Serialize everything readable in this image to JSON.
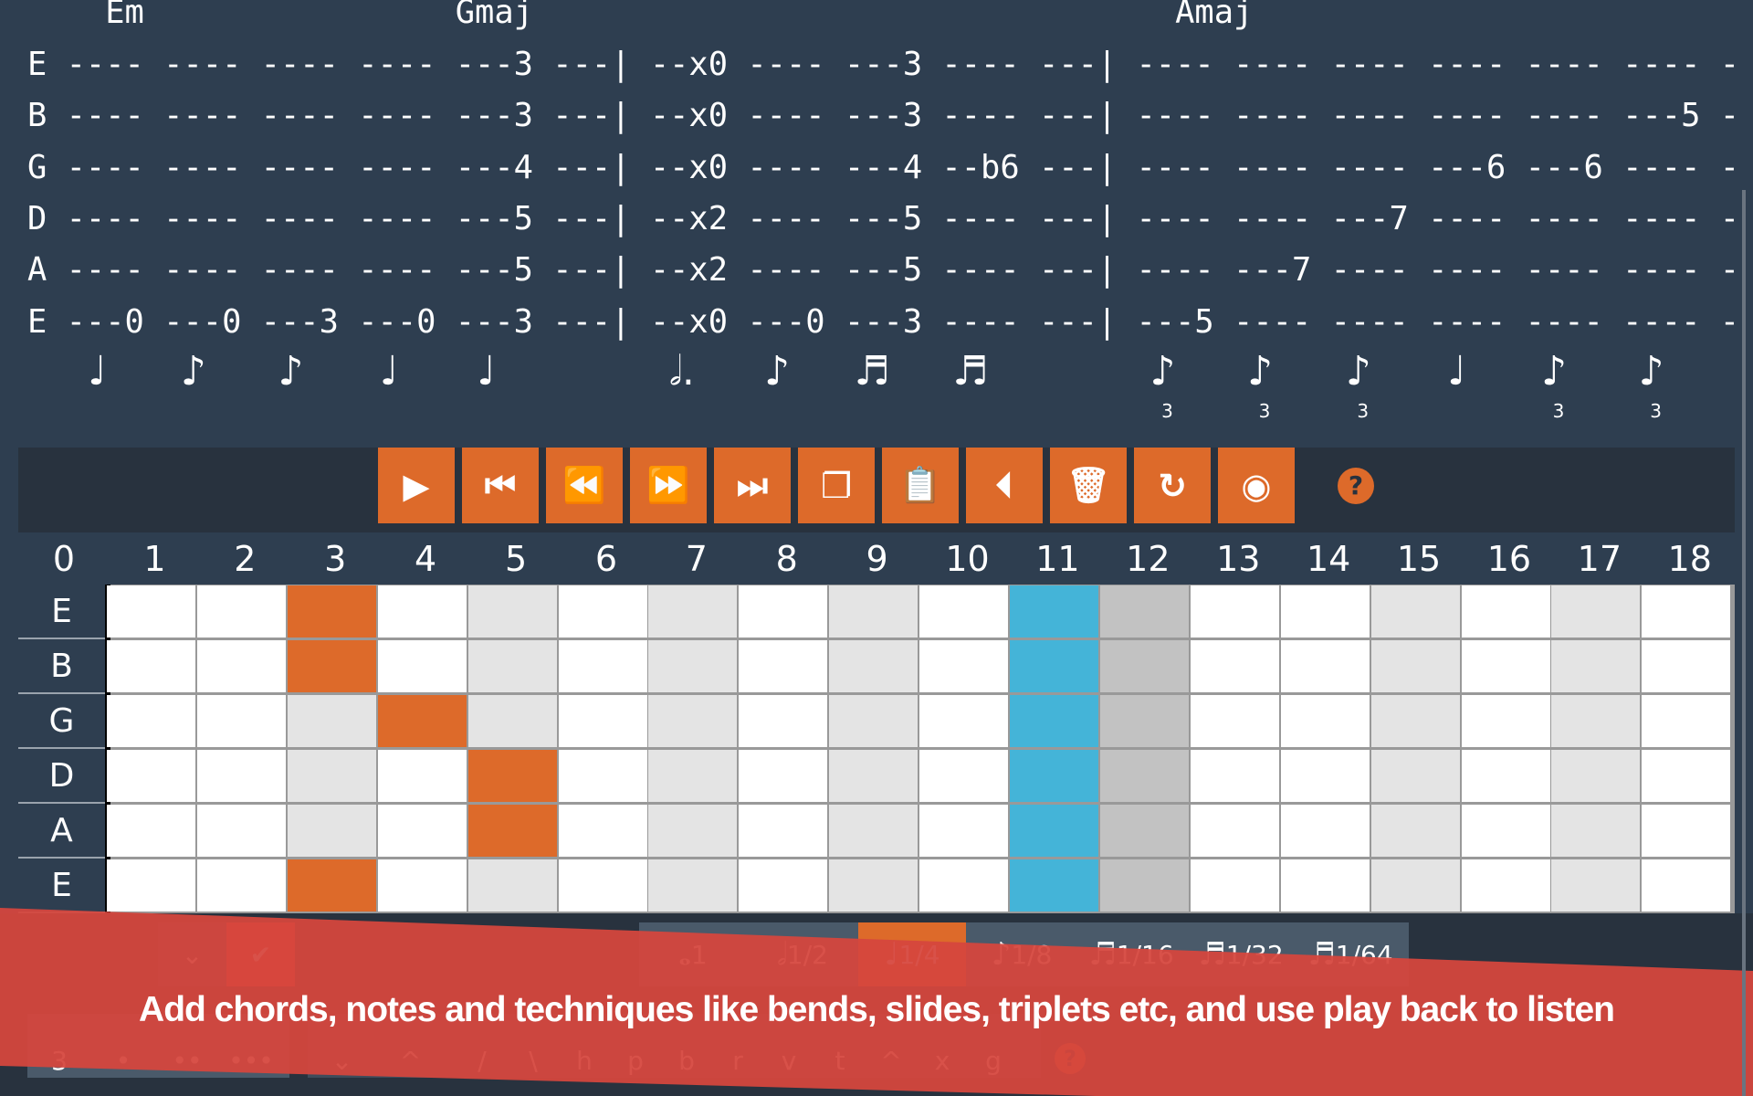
{
  "tab": {
    "chords": "    Em                Gmaj                                 Amaj",
    "rows": [
      "E ---- ---- ---- ---- ---3 ---| --x0 ---- ---3 ---- ---| ---- ---- ---- ---- ---- ---- -",
      "B ---- ---- ---- ---- ---3 ---| --x0 ---- ---3 ---- ---| ---- ---- ---- ---- ---- ---5 -",
      "G ---- ---- ---- ---- ---4 ---| --x0 ---- ---4 --b6 ---| ---- ---- ---- ---6 ---6 ---- -",
      "D ---- ---- ---- ---- ---5 ---| --x2 ---- ---5 ---- ---| ---- ---- ---7 ---- ---- ---- -",
      "A ---- ---- ---- ---- ---5 ---| --x2 ---- ---5 ---- ---| ---- ---7 ---- ---- ---- ---- -",
      "E ---0 ---0 ---3 ---0 ---3 ---| --x0 ---0 ---3 ---- ---| ---5 ---- ---- ---- ---- ---- -"
    ],
    "durations": [
      "♩",
      "♪",
      "♪",
      "♩",
      "♩",
      "𝅗𝅥.",
      "♪",
      "♬",
      "♬",
      "♪",
      "♪",
      "♪",
      "♩",
      "♪",
      "♪"
    ],
    "triplet_label": "3"
  },
  "toolbar": {
    "buttons": [
      "play-icon",
      "skip-to-start-icon",
      "rewind-icon",
      "fast-forward-icon",
      "skip-to-end-icon",
      "copy-icon",
      "paste-icon",
      "step-back-icon",
      "trash-icon",
      "redo-icon",
      "eye-icon"
    ],
    "glyphs": [
      "▶",
      "⏮",
      "⏪",
      "⏩",
      "⏭",
      "❐",
      "📋",
      "⏴",
      "🗑",
      "↻",
      "◉"
    ],
    "help": "?",
    "accent": "#dd6a2a"
  },
  "fretboard": {
    "frets": [
      "0",
      "1",
      "2",
      "3",
      "4",
      "5",
      "6",
      "7",
      "8",
      "9",
      "10",
      "11",
      "12",
      "13",
      "14",
      "15",
      "16",
      "17",
      "18"
    ],
    "strings": [
      "E",
      "B",
      "G",
      "D",
      "A",
      "E"
    ],
    "selected_frets": [
      3,
      3,
      4,
      5,
      5,
      3
    ],
    "highlight_fret": 11,
    "colors": {
      "selected": "#dd6a2a",
      "highlight": "#44b4d8",
      "marker": "#e4e4e4",
      "octave": "#c2c2c2"
    }
  },
  "durations_panel": {
    "items": [
      "1",
      "1/2",
      "1/4",
      "1/8",
      "1/16",
      "1/32",
      "1/64"
    ],
    "glyphs": [
      "𝅝",
      "𝅗𝅥",
      "♩",
      "♪",
      "♬",
      "♬",
      "♬"
    ],
    "selected": "1/4"
  },
  "actions": {
    "down": "⌄",
    "confirm": "✔"
  },
  "techniques": {
    "rhythm": [
      "3",
      "•",
      "••",
      "•••"
    ],
    "arrows": [
      "⌄",
      "^"
    ],
    "letters": [
      "/",
      "\\",
      "h",
      "p",
      "b",
      "r",
      "v",
      "t",
      "^",
      "x",
      "g"
    ],
    "help": "?"
  },
  "banner": {
    "text": "Add chords, notes and techniques like bends, slides, triplets etc, and use play back to listen"
  }
}
